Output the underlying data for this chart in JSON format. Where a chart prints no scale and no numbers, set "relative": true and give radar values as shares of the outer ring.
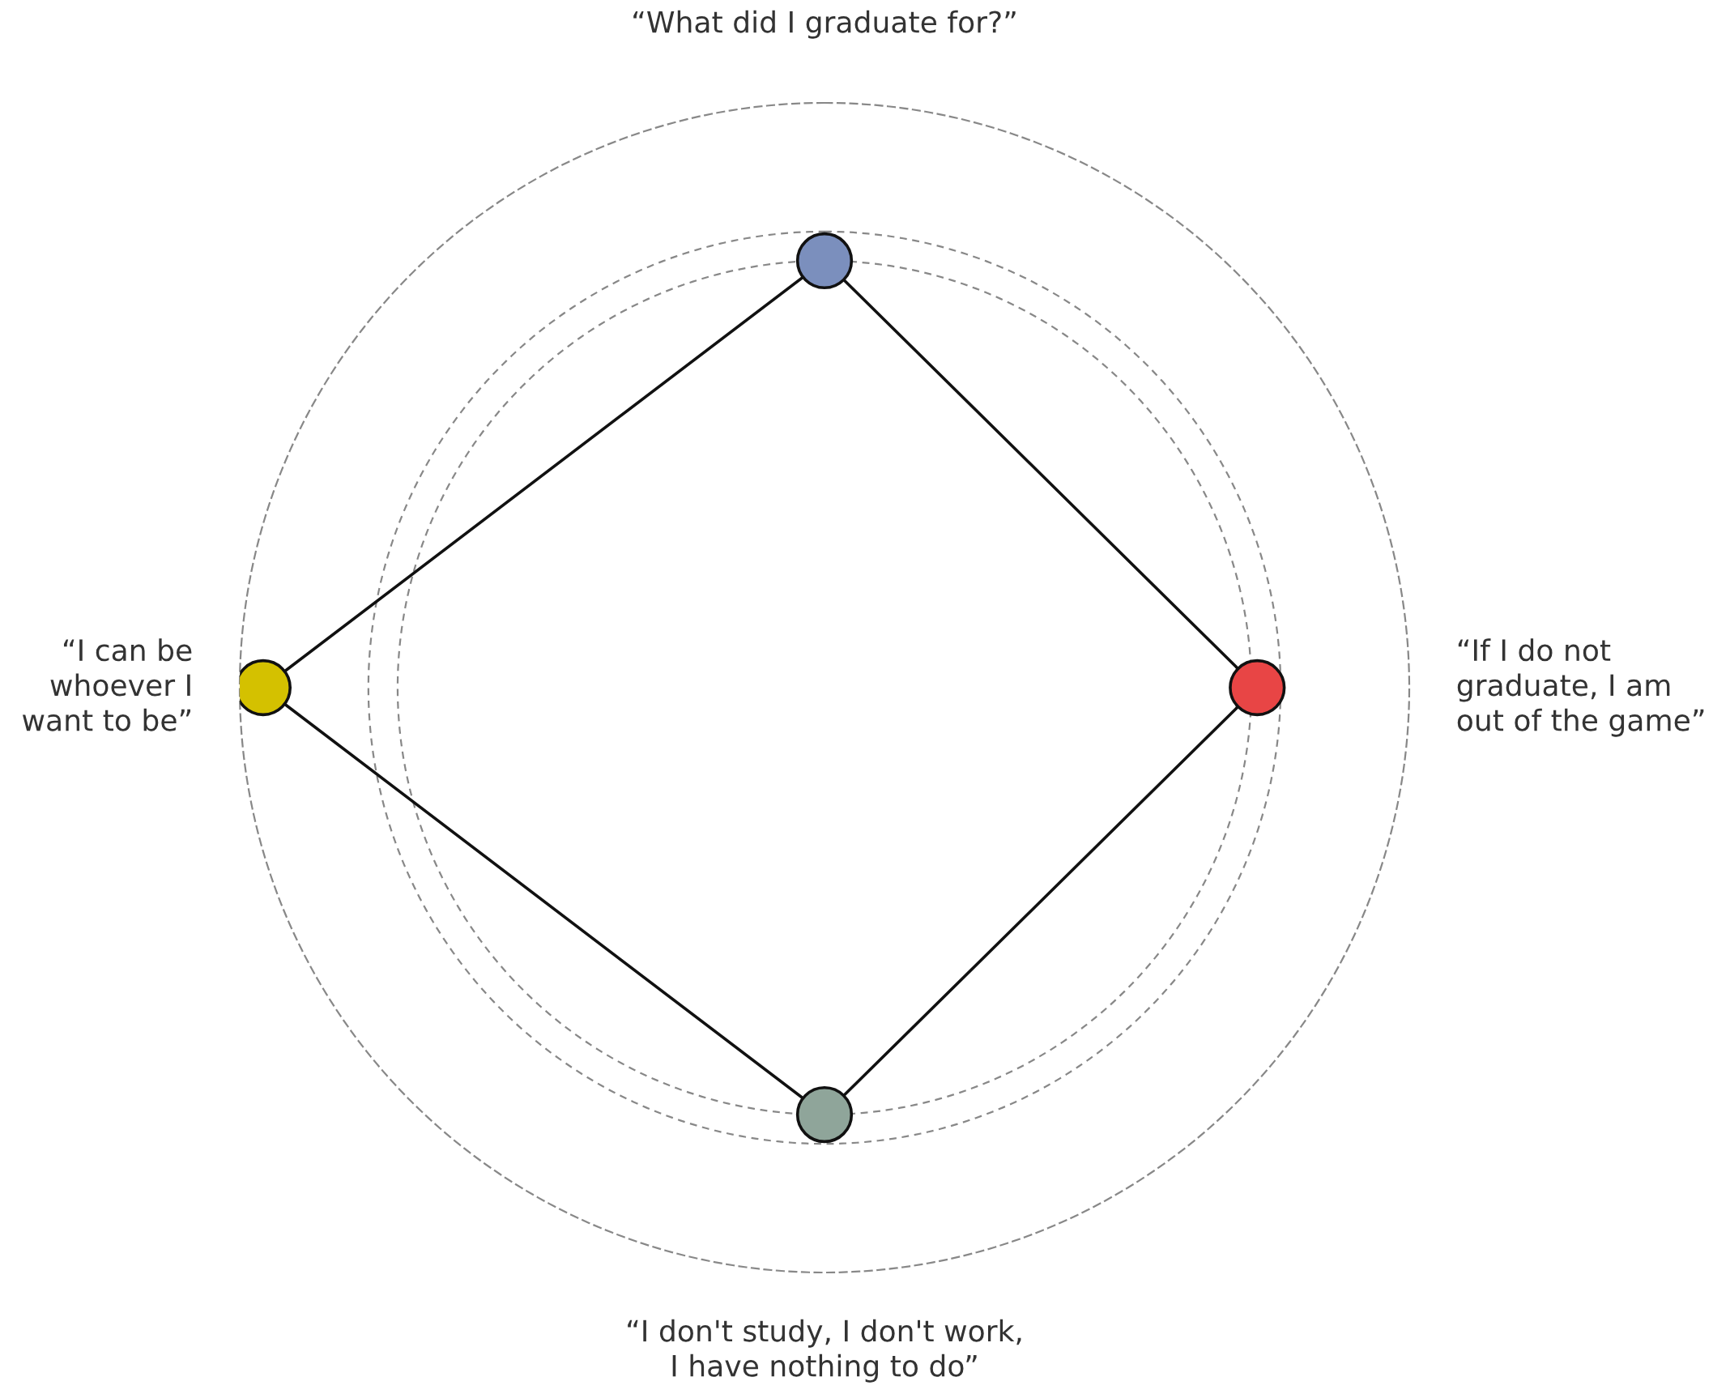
{
  "chart_data": {
    "type": "radar",
    "relative": true,
    "marker": "circle",
    "categories": [
      "“What did I graduate for?”",
      "“If I do not\ngraduate, I am\nout of the game”",
      "“I don't study, I don't work,\nI have nothing to do”",
      "“I can be\nwhoever I\nwant to be”"
    ],
    "colors": [
      "#7b8fbd",
      "#e84545",
      "#8fa59a",
      "#d4c100"
    ],
    "series": [
      {
        "color": "#111111",
        "values": [
          0.73,
          0.74,
          0.73,
          0.96
        ]
      }
    ]
  }
}
